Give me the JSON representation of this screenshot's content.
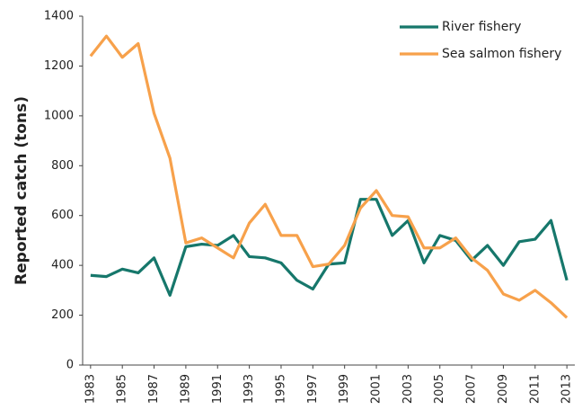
{
  "chart_data": {
    "type": "line",
    "ylabel": "Reported catch (tons)",
    "x": [
      1983,
      1984,
      1985,
      1986,
      1987,
      1988,
      1989,
      1990,
      1991,
      1992,
      1993,
      1994,
      1995,
      1996,
      1997,
      1998,
      1999,
      2000,
      2001,
      2002,
      2003,
      2004,
      2005,
      2006,
      2007,
      2008,
      2009,
      2010,
      2011,
      2012,
      2013
    ],
    "series": [
      {
        "name": "River fishery",
        "color": "#16776b",
        "values": [
          360,
          355,
          385,
          370,
          430,
          280,
          475,
          485,
          480,
          520,
          435,
          430,
          410,
          340,
          305,
          405,
          410,
          665,
          665,
          520,
          580,
          410,
          520,
          500,
          420,
          480,
          400,
          495,
          505,
          580,
          340
        ]
      },
      {
        "name": "Sea salmon fishery",
        "color": "#f7a14b",
        "values": [
          1240,
          1320,
          1235,
          1290,
          1010,
          830,
          490,
          510,
          470,
          430,
          570,
          645,
          520,
          520,
          395,
          405,
          480,
          630,
          700,
          600,
          595,
          470,
          470,
          510,
          430,
          380,
          285,
          260,
          300,
          250,
          190
        ]
      }
    ],
    "xlim": [
      1982.5,
      2013.5
    ],
    "xticks": [
      1983,
      1985,
      1987,
      1989,
      1991,
      1993,
      1995,
      1997,
      1999,
      2001,
      2003,
      2005,
      2007,
      2009,
      2011,
      2013
    ],
    "ylim": [
      0,
      1400
    ],
    "yticks": [
      0,
      200,
      400,
      600,
      800,
      1000,
      1200,
      1400
    ],
    "grid": false,
    "legend": "top-right"
  }
}
